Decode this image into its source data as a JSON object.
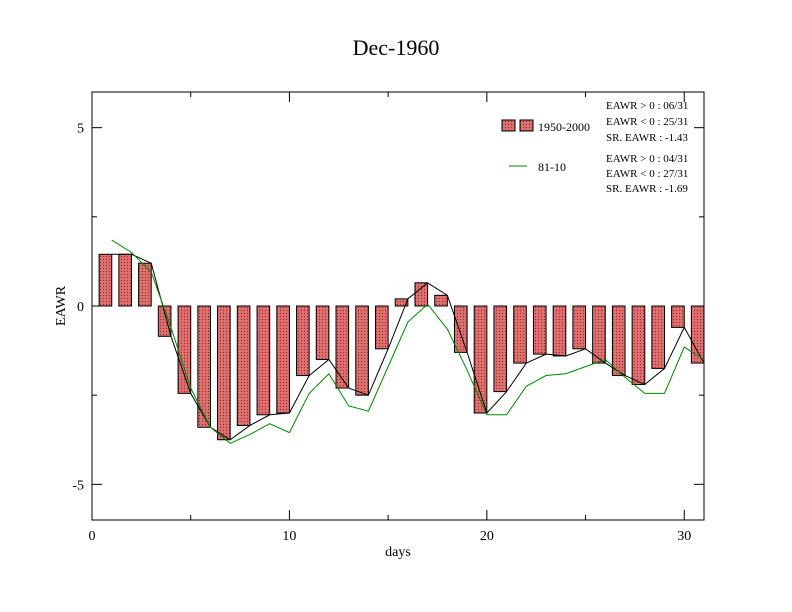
{
  "chart_data": {
    "type": "bar",
    "title": "Dec-1960",
    "xlabel": "days",
    "ylabel": "EAWR",
    "xlim": [
      0,
      31
    ],
    "ylim": [
      -6,
      6
    ],
    "x_ticks": [
      0,
      10,
      20,
      30
    ],
    "y_ticks": [
      -5,
      0,
      5
    ],
    "grid": false,
    "legend_position": "top-right",
    "colors": {
      "bar_fill": "#e07070",
      "bar_pattern": "#8b2a2a",
      "bar_line": "#000000",
      "series_line": "#008800"
    },
    "x": [
      1,
      2,
      3,
      4,
      5,
      6,
      7,
      8,
      9,
      10,
      11,
      12,
      13,
      14,
      15,
      16,
      17,
      18,
      19,
      20,
      21,
      22,
      23,
      24,
      25,
      26,
      27,
      28,
      29,
      30,
      31
    ],
    "series": [
      {
        "name": "1950-2000",
        "kind": "bar",
        "values": [
          1.45,
          1.45,
          1.2,
          -0.85,
          -2.45,
          -3.4,
          -3.75,
          -3.35,
          -3.05,
          -3.0,
          -1.95,
          -1.5,
          -2.3,
          -2.5,
          -1.2,
          0.2,
          0.65,
          0.3,
          -1.3,
          -3.0,
          -2.4,
          -1.6,
          -1.35,
          -1.4,
          -1.2,
          -1.6,
          -1.95,
          -2.2,
          -1.75,
          -0.6,
          -1.6
        ]
      },
      {
        "name": "81-10",
        "kind": "line",
        "values": [
          1.85,
          1.5,
          0.95,
          -0.6,
          -2.3,
          -3.4,
          -3.85,
          -3.6,
          -3.3,
          -3.55,
          -2.45,
          -1.9,
          -2.8,
          -2.95,
          -1.7,
          -0.45,
          0.05,
          -0.65,
          -1.8,
          -3.05,
          -3.05,
          -2.25,
          -1.95,
          -1.9,
          -1.7,
          -1.5,
          -2.0,
          -2.45,
          -2.45,
          -1.15,
          -1.5
        ]
      }
    ],
    "annotations": {
      "bar_stats": [
        "EAWR > 0 : 06/31",
        "EAWR < 0 : 25/31",
        "SR. EAWR : -1.43"
      ],
      "line_stats": [
        "EAWR > 0 : 04/31",
        "EAWR < 0 : 27/31",
        "SR. EAWR : -1.69"
      ]
    }
  }
}
